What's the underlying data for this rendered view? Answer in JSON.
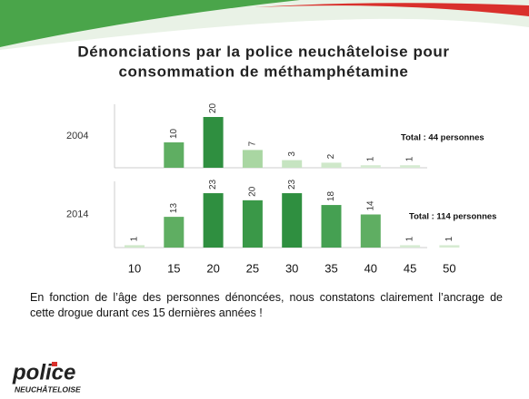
{
  "slide": {
    "title": [
      "Dénonciations par la police neuchâteloise pour",
      "consommation de méthamphétamine"
    ],
    "caption": "En fonction de l’âge des personnes dénoncées, nous constatons clairement l’ancrage de cette drogue durant ces 15 dernières années !",
    "logo": "police",
    "logo_subtitle": "NEUCHÂTELOISE"
  },
  "chart_data": [
    {
      "type": "bar",
      "label": "2004",
      "annotation": "Total : 44 personnes",
      "values": [
        null,
        10,
        20,
        7,
        3,
        2,
        1,
        1,
        null
      ],
      "colors": [
        null,
        "#5fae62",
        "#2f8f40",
        "#a9d6a2",
        "#c6e4c1",
        "#cfe8ca",
        "#d6ebd2",
        "#d6ebd2",
        null
      ],
      "ylim": [
        0,
        25
      ]
    },
    {
      "type": "bar",
      "label": "2014",
      "annotation": "Total : 114 personnes",
      "categories": [
        "10",
        "15",
        "20",
        "25",
        "30",
        "35",
        "40",
        "45",
        "50"
      ],
      "values": [
        1,
        13,
        23,
        20,
        23,
        18,
        14,
        1,
        1
      ],
      "colors": [
        "#cfe8ca",
        "#5fae62",
        "#2f8f40",
        "#3a9848",
        "#2f8f40",
        "#45a052",
        "#5fae62",
        "#d6ebd2",
        "#d6ebd2"
      ],
      "ylim": [
        0,
        28
      ]
    }
  ]
}
